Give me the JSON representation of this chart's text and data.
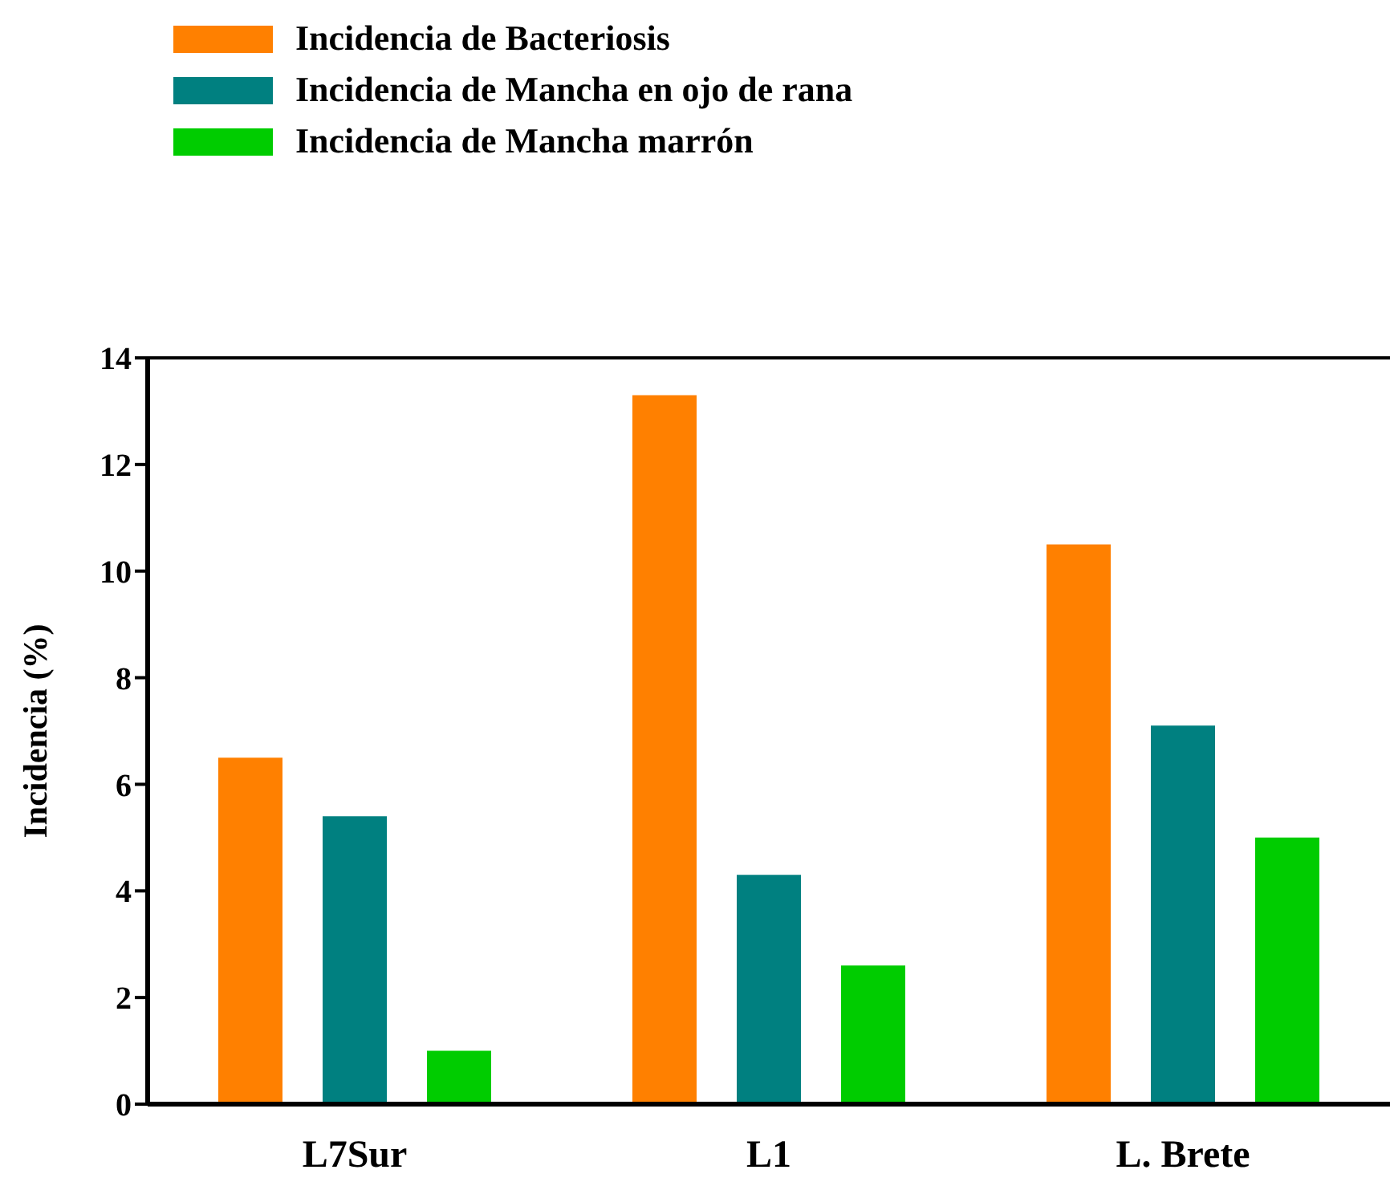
{
  "chart_data": {
    "type": "bar",
    "ylabel": "Incidencia (%)",
    "categories": [
      "L7Sur",
      "L1",
      "L. Brete"
    ],
    "series": [
      {
        "name": "Incidencia de Bacteriosis",
        "color": "#ff8000",
        "values": [
          6.5,
          13.3,
          10.5
        ]
      },
      {
        "name": "Incidencia de Mancha en ojo de rana",
        "color": "#008080",
        "values": [
          5.4,
          4.3,
          7.1
        ]
      },
      {
        "name": "Incidencia de Mancha marrón",
        "color": "#00cc00",
        "values": [
          1.0,
          2.6,
          5.0
        ]
      }
    ],
    "ylim": [
      0,
      14
    ],
    "yticks": [
      0,
      2,
      4,
      6,
      8,
      10,
      12,
      14
    ],
    "grid": false,
    "legend": "top left"
  }
}
